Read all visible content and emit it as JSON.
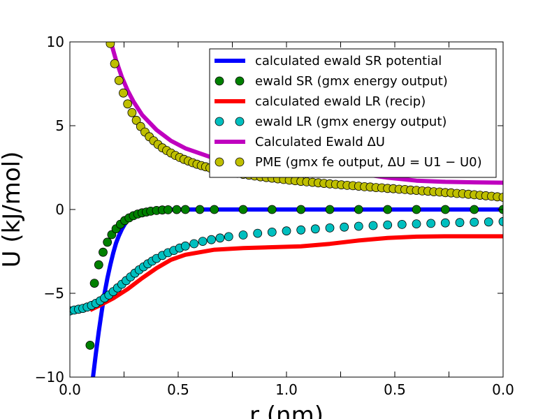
{
  "chart_data": {
    "type": "line",
    "xlabel": "r (nm)",
    "ylabel": "U (kJ/mol)",
    "xlim": [
      0.0,
      1.5
    ],
    "ylim": [
      -10,
      10
    ],
    "x_ticks": [
      0.0,
      0.25,
      0.5,
      0.75,
      1.0,
      1.25,
      1.5
    ],
    "x_tick_labels": [
      "0.0",
      "",
      "0.5",
      "",
      "1.0",
      "",
      "0.5",
      "",
      "0.0"
    ],
    "x_tick_positions": [
      0.0,
      0.1875,
      0.375,
      0.5625,
      0.75,
      0.9375,
      1.125,
      1.3125,
      1.5
    ],
    "y_ticks": [
      -10,
      -5,
      0,
      5,
      10
    ],
    "y_tick_labels": [
      "−10",
      "−5",
      "0",
      "5",
      "10"
    ],
    "grid": false,
    "legend_position": "top-right",
    "series": [
      {
        "name": "calculated ewald SR potential",
        "style": "line",
        "color": "#0000ff",
        "x": [
          0.06,
          0.07,
          0.08,
          0.09,
          0.1,
          0.11,
          0.12,
          0.13,
          0.14,
          0.15,
          0.16,
          0.17,
          0.18,
          0.19,
          0.2,
          0.22,
          0.24,
          0.26,
          0.28,
          0.3,
          0.35,
          0.4,
          0.45,
          0.5,
          0.6,
          0.8,
          1.0,
          1.2,
          1.5
        ],
        "y": [
          -13.5,
          -11.6,
          -10.0,
          -8.6,
          -7.3,
          -6.1,
          -5.0,
          -4.1,
          -3.3,
          -2.6,
          -2.0,
          -1.55,
          -1.18,
          -0.88,
          -0.65,
          -0.36,
          -0.19,
          -0.1,
          -0.05,
          -0.025,
          -0.005,
          0.0,
          0.0,
          0.0,
          0.0,
          0.0,
          0.0,
          0.0,
          0.0
        ]
      },
      {
        "name": "ewald SR (gmx energy output)",
        "style": "markers",
        "color": "#008000",
        "x": [
          0.07,
          0.085,
          0.1,
          0.115,
          0.13,
          0.145,
          0.16,
          0.175,
          0.19,
          0.205,
          0.22,
          0.235,
          0.25,
          0.265,
          0.28,
          0.3,
          0.32,
          0.34,
          0.37,
          0.4,
          0.45,
          0.5,
          0.6,
          0.7,
          0.8,
          0.9,
          1.0,
          1.1,
          1.2,
          1.3,
          1.4,
          1.5
        ],
        "y": [
          -8.1,
          -4.4,
          -3.3,
          -2.55,
          -1.95,
          -1.5,
          -1.15,
          -0.88,
          -0.66,
          -0.5,
          -0.37,
          -0.27,
          -0.2,
          -0.15,
          -0.1,
          -0.06,
          -0.03,
          -0.015,
          -0.005,
          0.0,
          0.0,
          0.0,
          0.0,
          0.0,
          0.0,
          0.0,
          0.0,
          0.0,
          0.0,
          0.0,
          0.0,
          0.0
        ]
      },
      {
        "name": "calculated ewald LR (recip)",
        "style": "line",
        "color": "#ff0000",
        "x": [
          0.07,
          0.1,
          0.15,
          0.2,
          0.25,
          0.3,
          0.35,
          0.4,
          0.5,
          0.6,
          0.7,
          0.8,
          0.9,
          1.0,
          1.1,
          1.2,
          1.3,
          1.4,
          1.5
        ],
        "y": [
          -6.0,
          -5.75,
          -5.3,
          -4.75,
          -4.1,
          -3.5,
          -3.0,
          -2.7,
          -2.4,
          -2.3,
          -2.25,
          -2.2,
          -2.05,
          -1.85,
          -1.7,
          -1.62,
          -1.6,
          -1.6,
          -1.6
        ]
      },
      {
        "name": "ewald LR (gmx energy output)",
        "style": "markers",
        "color": "#00bfbf",
        "x": [
          0.0,
          0.015,
          0.03,
          0.045,
          0.06,
          0.075,
          0.09,
          0.105,
          0.12,
          0.135,
          0.15,
          0.165,
          0.18,
          0.195,
          0.21,
          0.225,
          0.24,
          0.255,
          0.27,
          0.285,
          0.3,
          0.32,
          0.34,
          0.36,
          0.38,
          0.4,
          0.43,
          0.46,
          0.49,
          0.52,
          0.55,
          0.6,
          0.65,
          0.7,
          0.75,
          0.8,
          0.85,
          0.9,
          0.95,
          1.0,
          1.05,
          1.1,
          1.15,
          1.2,
          1.25,
          1.3,
          1.35,
          1.4,
          1.45,
          1.5
        ],
        "y": [
          -6.05,
          -6.0,
          -5.95,
          -5.9,
          -5.82,
          -5.72,
          -5.6,
          -5.45,
          -5.28,
          -5.1,
          -4.9,
          -4.68,
          -4.46,
          -4.24,
          -4.02,
          -3.8,
          -3.6,
          -3.42,
          -3.24,
          -3.08,
          -2.92,
          -2.74,
          -2.58,
          -2.44,
          -2.3,
          -2.18,
          -2.04,
          -1.9,
          -1.8,
          -1.7,
          -1.62,
          -1.52,
          -1.42,
          -1.35,
          -1.28,
          -1.22,
          -1.16,
          -1.1,
          -1.05,
          -1.0,
          -0.96,
          -0.92,
          -0.89,
          -0.86,
          -0.83,
          -0.8,
          -0.78,
          -0.76,
          -0.74,
          -0.72
        ]
      },
      {
        "name": "Calculated Ewald ΔU",
        "style": "line",
        "color": "#bf00bf",
        "x": [
          0.1,
          0.12,
          0.14,
          0.16,
          0.18,
          0.2,
          0.22,
          0.25,
          0.3,
          0.35,
          0.4,
          0.5,
          0.6,
          0.7,
          0.8,
          0.9,
          1.0,
          1.1,
          1.2,
          1.3,
          1.4,
          1.5
        ],
        "y": [
          13.0,
          11.5,
          10.1,
          8.9,
          7.9,
          7.1,
          6.45,
          5.65,
          4.75,
          4.1,
          3.65,
          3.05,
          2.7,
          2.5,
          2.4,
          2.35,
          2.15,
          1.9,
          1.72,
          1.65,
          1.62,
          1.6
        ]
      },
      {
        "name": "PME (gmx fe output, ΔU = U1 − U0)",
        "style": "markers",
        "color": "#bfbf00",
        "x": [
          0.14,
          0.155,
          0.17,
          0.185,
          0.2,
          0.215,
          0.23,
          0.245,
          0.26,
          0.275,
          0.29,
          0.305,
          0.32,
          0.335,
          0.35,
          0.365,
          0.38,
          0.395,
          0.41,
          0.425,
          0.44,
          0.455,
          0.47,
          0.485,
          0.5,
          0.52,
          0.54,
          0.56,
          0.58,
          0.6,
          0.62,
          0.64,
          0.66,
          0.68,
          0.7,
          0.72,
          0.74,
          0.76,
          0.78,
          0.8,
          0.82,
          0.84,
          0.86,
          0.88,
          0.9,
          0.92,
          0.94,
          0.96,
          0.98,
          1.0,
          1.02,
          1.04,
          1.06,
          1.08,
          1.1,
          1.12,
          1.14,
          1.16,
          1.18,
          1.2,
          1.22,
          1.24,
          1.26,
          1.28,
          1.3,
          1.32,
          1.34,
          1.36,
          1.38,
          1.4,
          1.42,
          1.44,
          1.46,
          1.48,
          1.5
        ],
        "y": [
          9.9,
          8.7,
          7.7,
          6.95,
          6.3,
          5.78,
          5.32,
          4.95,
          4.62,
          4.34,
          4.1,
          3.88,
          3.68,
          3.52,
          3.37,
          3.23,
          3.11,
          2.99,
          2.89,
          2.79,
          2.7,
          2.62,
          2.55,
          2.48,
          2.42,
          2.35,
          2.28,
          2.22,
          2.16,
          2.1,
          2.05,
          2.0,
          1.95,
          1.91,
          1.87,
          1.83,
          1.79,
          1.75,
          1.72,
          1.68,
          1.65,
          1.62,
          1.59,
          1.56,
          1.53,
          1.5,
          1.47,
          1.44,
          1.42,
          1.39,
          1.36,
          1.34,
          1.31,
          1.29,
          1.26,
          1.24,
          1.21,
          1.19,
          1.16,
          1.14,
          1.11,
          1.09,
          1.06,
          1.04,
          1.01,
          0.99,
          0.96,
          0.94,
          0.91,
          0.88,
          0.85,
          0.82,
          0.79,
          0.76,
          0.73
        ]
      }
    ]
  }
}
